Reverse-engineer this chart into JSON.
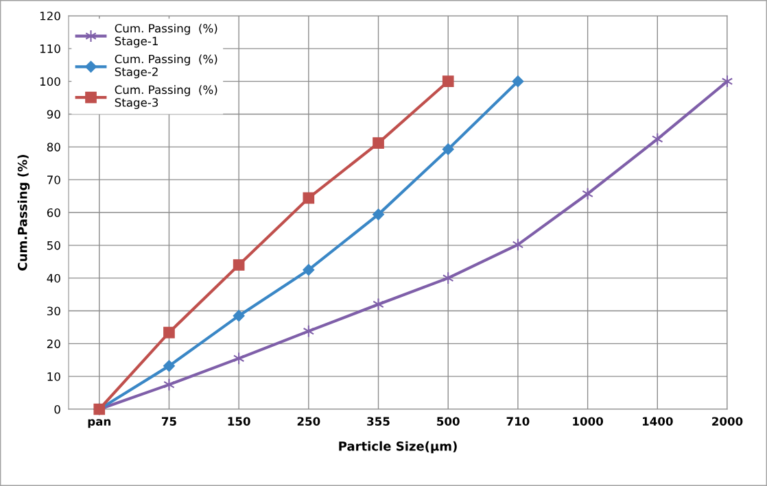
{
  "chart_data": {
    "type": "line",
    "xlabel": "Particle Size(µm)",
    "ylabel": "Cum.Passing (%)",
    "categories": [
      "pan",
      "75",
      "150",
      "250",
      "355",
      "500",
      "710",
      "1000",
      "1400",
      "2000"
    ],
    "series": [
      {
        "name": "Cum. Passing  (%)\nStage-1",
        "color": "#7f5fa9",
        "marker": "cross",
        "values": [
          0,
          7.5,
          15.5,
          23.8,
          32,
          40,
          50.2,
          65.7,
          82.4,
          100
        ]
      },
      {
        "name": "Cum. Passing  (%)\nStage-2",
        "color": "#3a87c6",
        "marker": "diamond",
        "values": [
          0,
          13.2,
          28.5,
          42.5,
          59.4,
          79.3,
          100,
          null,
          null,
          null
        ]
      },
      {
        "name": "Cum. Passing  (%)\nStage-3",
        "color": "#c0504d",
        "marker": "square",
        "values": [
          0,
          23.4,
          44,
          64.4,
          81.2,
          100,
          null,
          null,
          null,
          null
        ]
      }
    ],
    "ylim": [
      0,
      120
    ],
    "yticks": [
      0,
      10,
      20,
      30,
      40,
      50,
      60,
      70,
      80,
      90,
      100,
      110,
      120
    ],
    "grid": true,
    "legend": "top left"
  }
}
